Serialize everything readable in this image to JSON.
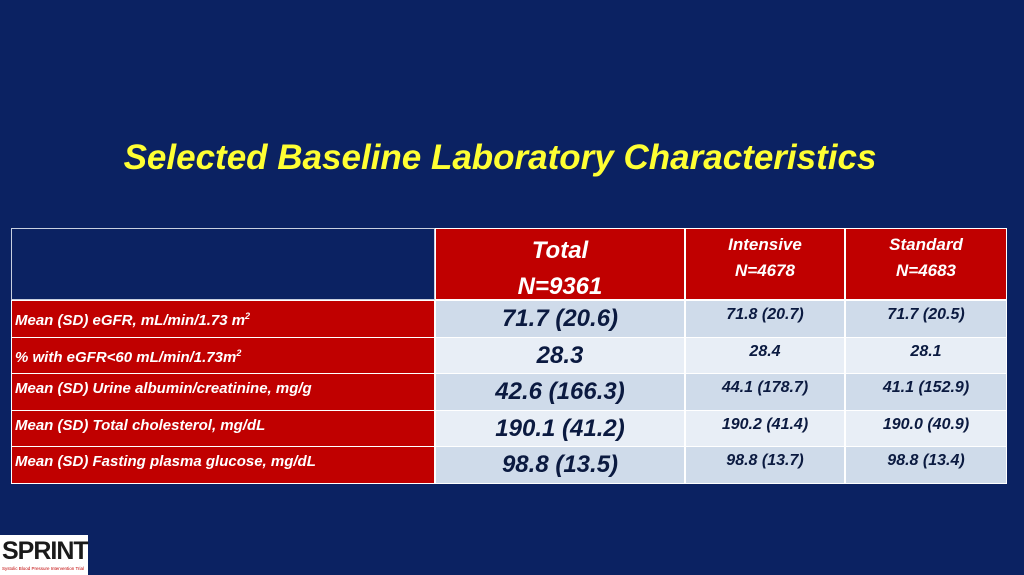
{
  "title": "Selected Baseline Laboratory Characteristics",
  "table": {
    "header": [
      {
        "label": "Total",
        "n": "N=9361"
      },
      {
        "label": "Intensive",
        "n": "N=4678"
      },
      {
        "label": "Standard",
        "n": "N=4683"
      }
    ],
    "rows": [
      {
        "label": "Mean (SD) eGFR, mL/min/1.73 m",
        "sup": "2",
        "cells": [
          "71.7 (20.6)",
          "71.8 (20.7)",
          "71.7 (20.5)"
        ]
      },
      {
        "label": "% with eGFR<60 mL/min/1.73m",
        "sup": "2",
        "cells": [
          "28.3",
          "28.4",
          "28.1"
        ]
      },
      {
        "label": "Mean (SD) Urine albumin/creatinine, mg/g",
        "cells": [
          "42.6 (166.3)",
          "44.1 (178.7)",
          "41.1 (152.9)"
        ]
      },
      {
        "label": "Mean (SD) Total cholesterol, mg/dL",
        "cells": [
          "190.1 (41.2)",
          "190.2 (41.4)",
          "190.0 (40.9)"
        ]
      },
      {
        "label": "Mean (SD) Fasting plasma glucose, mg/dL",
        "cells": [
          "98.8 (13.5)",
          "98.8 (13.7)",
          "98.8 (13.4)"
        ]
      }
    ]
  },
  "logo": {
    "name": "SPRINT",
    "tagline": "Systolic Blood Pressure Intervention Trial"
  }
}
